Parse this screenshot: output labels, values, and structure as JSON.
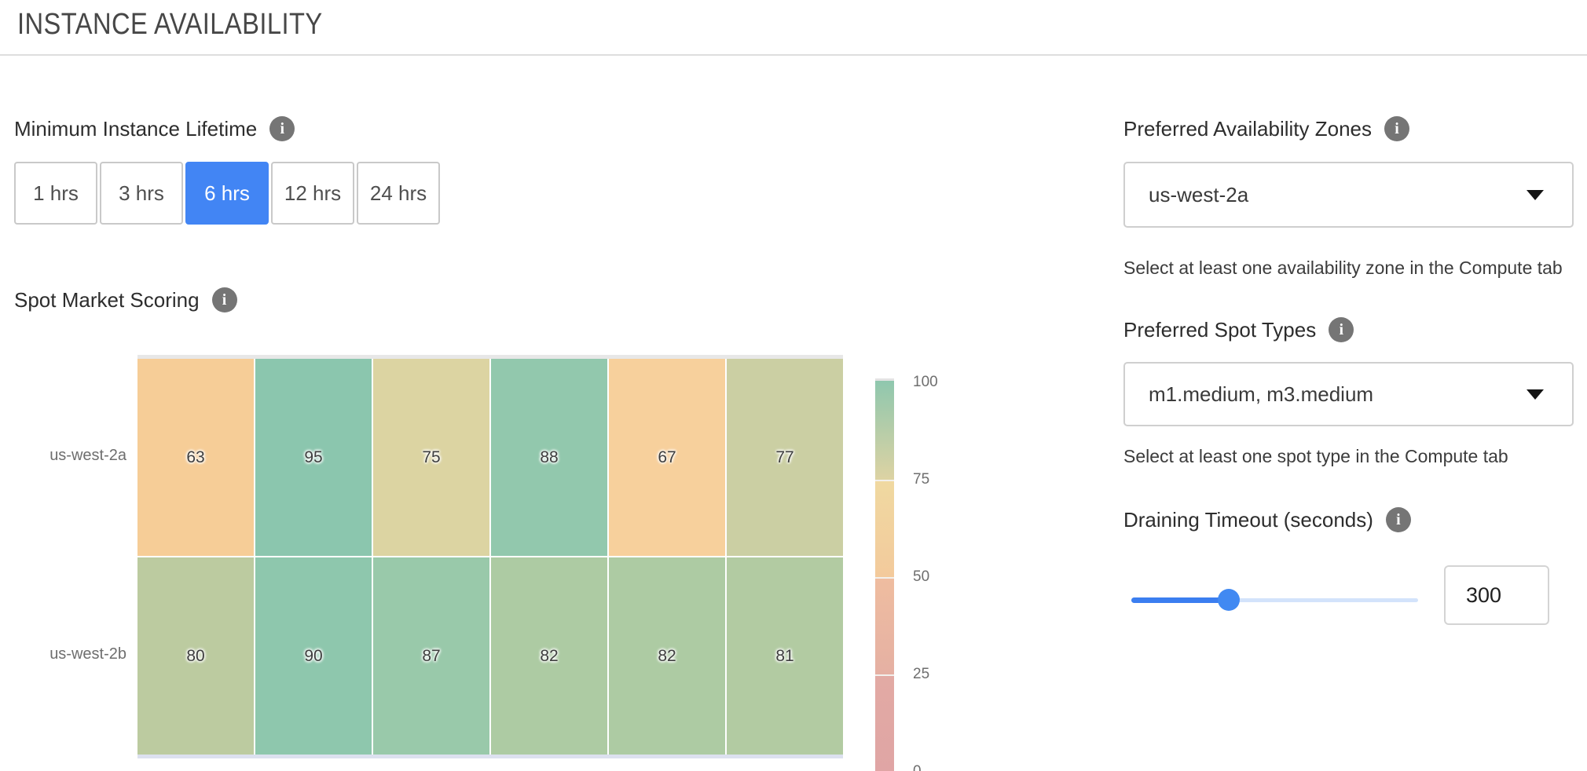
{
  "header": {
    "title": "INSTANCE AVAILABILITY"
  },
  "colors": {
    "selected_button_blue": "#4285f4",
    "slider_fill_blue": "#3b7ef0",
    "slider_track_light": "#d3e3fb",
    "info_icon_gray": "#757575"
  },
  "minimum_instance_lifetime": {
    "label": "Minimum Instance Lifetime",
    "options": [
      {
        "label": "1 hrs",
        "selected": false
      },
      {
        "label": "3 hrs",
        "selected": false
      },
      {
        "label": "6 hrs",
        "selected": true
      },
      {
        "label": "12 hrs",
        "selected": false
      },
      {
        "label": "24 hrs",
        "selected": false
      }
    ]
  },
  "spot_market_scoring": {
    "label": "Spot Market Scoring"
  },
  "chart_data": {
    "type": "heatmap",
    "title": "Spot Market Scoring",
    "value_range": [
      0,
      100
    ],
    "rows": [
      {
        "label": "us-west-2a",
        "cells": [
          {
            "value": 63,
            "color": "#f6cd97"
          },
          {
            "value": 95,
            "color": "#8bc6ae"
          },
          {
            "value": 75,
            "color": "#dcd4a2"
          },
          {
            "value": 88,
            "color": "#92c8ad"
          },
          {
            "value": 67,
            "color": "#f7d09c"
          },
          {
            "value": 77,
            "color": "#cbcfa3"
          }
        ]
      },
      {
        "label": "us-west-2b",
        "cells": [
          {
            "value": 80,
            "color": "#bccba0"
          },
          {
            "value": 90,
            "color": "#8ec7ad"
          },
          {
            "value": 87,
            "color": "#99c9aa"
          },
          {
            "value": 82,
            "color": "#adcba3"
          },
          {
            "value": 82,
            "color": "#adcba3"
          },
          {
            "value": 81,
            "color": "#b2cba2"
          }
        ]
      }
    ],
    "colorbar": {
      "ticks": [
        "100",
        "75",
        "50",
        "25",
        "0"
      ],
      "segments": [
        {
          "from": 100,
          "to": 75,
          "top_color": "#8fc7ae",
          "bottom_color": "#ddd3a3"
        },
        {
          "from": 75,
          "to": 50,
          "top_color": "#f0d9a1",
          "bottom_color": "#f3ca9c"
        },
        {
          "from": 50,
          "to": 25,
          "top_color": "#efbda0",
          "bottom_color": "#e5b0a3"
        },
        {
          "from": 25,
          "to": 0,
          "top_color": "#e2aaa4",
          "bottom_color": "#dfa3a5"
        }
      ],
      "legend_position": "right"
    },
    "grid": false
  },
  "preferred_availability_zones": {
    "label": "Preferred Availability Zones",
    "value": "us-west-2a",
    "helper": "Select at least one availability zone in the Compute tab"
  },
  "preferred_spot_types": {
    "label": "Preferred Spot Types",
    "value": "m1.medium, m3.medium",
    "helper": "Select at least one spot type in the Compute tab"
  },
  "draining_timeout": {
    "label": "Draining Timeout (seconds)",
    "value": "300",
    "slider_percent": 34
  }
}
